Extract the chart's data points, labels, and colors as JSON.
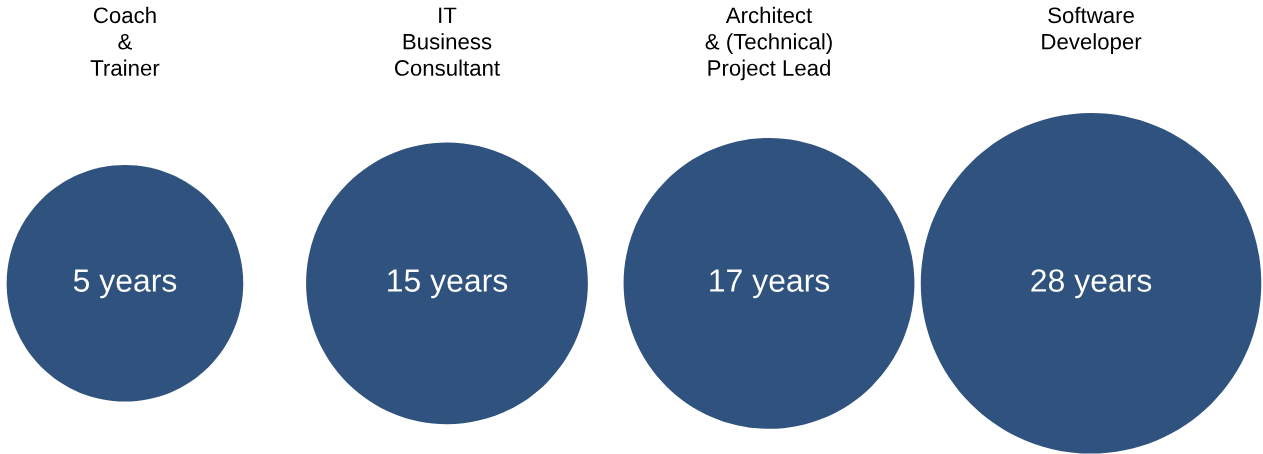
{
  "chart_data": {
    "type": "other",
    "categories": [
      "Coach\n&\nTrainer",
      "IT\nBusiness\nConsultant",
      "Architect\n& (Technical)\nProject Lead",
      "Software\nDeveloper"
    ],
    "values": [
      5,
      15,
      17,
      28
    ],
    "value_labels": [
      "5 years",
      "15 years",
      "17 years",
      "28 years"
    ],
    "color": "#2f527f"
  }
}
